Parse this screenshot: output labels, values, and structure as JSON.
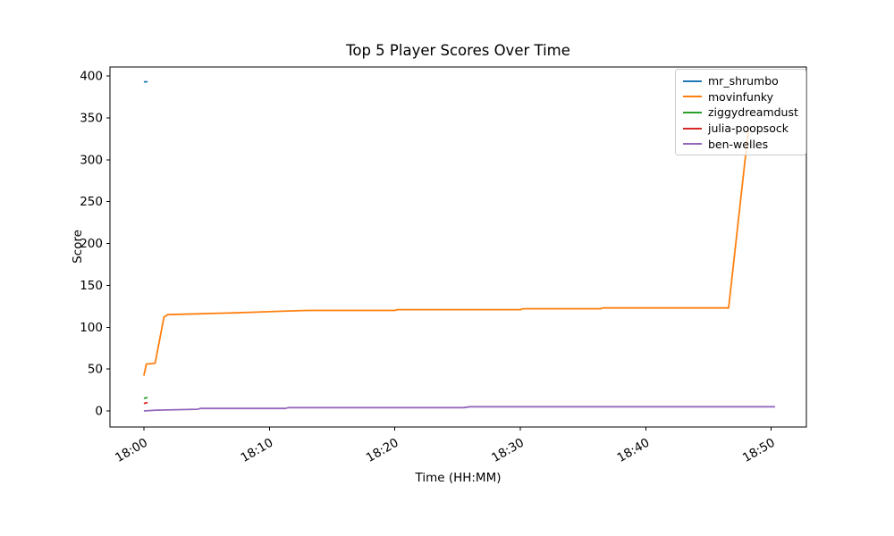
{
  "figure": {
    "title": "Top 5 Player Scores Over Time",
    "xlabel": "Time (HH:MM)",
    "ylabel": "Score"
  },
  "chart_data": {
    "type": "line",
    "title": "Top 5 Player Scores Over Time",
    "xlabel": "Time (HH:MM)",
    "ylabel": "Score",
    "x_unit": "minutes after 18:00",
    "xlim": [
      -2.7,
      52.8
    ],
    "ylim": [
      -19.2,
      410.7
    ],
    "grid": false,
    "legend_position": "upper right",
    "x_ticks": [
      {
        "value": 0,
        "label": "18:00"
      },
      {
        "value": 10,
        "label": "18:10"
      },
      {
        "value": 20,
        "label": "18:20"
      },
      {
        "value": 30,
        "label": "18:30"
      },
      {
        "value": 40,
        "label": "18:40"
      },
      {
        "value": 50,
        "label": "18:50"
      }
    ],
    "y_ticks": [
      0,
      50,
      100,
      150,
      200,
      250,
      300,
      350,
      400
    ],
    "series": [
      {
        "name": "mr_shrumbo",
        "color": "#1f77b4",
        "points": [
          [
            0,
            393
          ],
          [
            0.3,
            393
          ]
        ]
      },
      {
        "name": "movinfunky",
        "color": "#ff7f0e",
        "points": [
          [
            0,
            42
          ],
          [
            0.2,
            56
          ],
          [
            0.9,
            57
          ],
          [
            1.6,
            112
          ],
          [
            1.9,
            115
          ],
          [
            4.3,
            116
          ],
          [
            7,
            117
          ],
          [
            9,
            118
          ],
          [
            11,
            119
          ],
          [
            13,
            120
          ],
          [
            20,
            120
          ],
          [
            20.2,
            121
          ],
          [
            30,
            121
          ],
          [
            30.2,
            122
          ],
          [
            36.4,
            122
          ],
          [
            36.6,
            123
          ],
          [
            46.6,
            123
          ],
          [
            48.2,
            338
          ]
        ]
      },
      {
        "name": "ziggydreamdust",
        "color": "#2ca02c",
        "points": [
          [
            0,
            15
          ],
          [
            0.3,
            16
          ]
        ]
      },
      {
        "name": "julia-poopsock",
        "color": "#d62728",
        "points": [
          [
            0,
            9
          ],
          [
            0.3,
            10
          ]
        ]
      },
      {
        "name": "ben-welles",
        "color": "#9467bd",
        "points": [
          [
            0,
            0
          ],
          [
            1,
            1
          ],
          [
            4.3,
            2
          ],
          [
            4.5,
            3
          ],
          [
            11.3,
            3
          ],
          [
            11.5,
            4
          ],
          [
            25.5,
            4
          ],
          [
            26,
            5
          ],
          [
            50.3,
            5
          ]
        ]
      }
    ]
  }
}
